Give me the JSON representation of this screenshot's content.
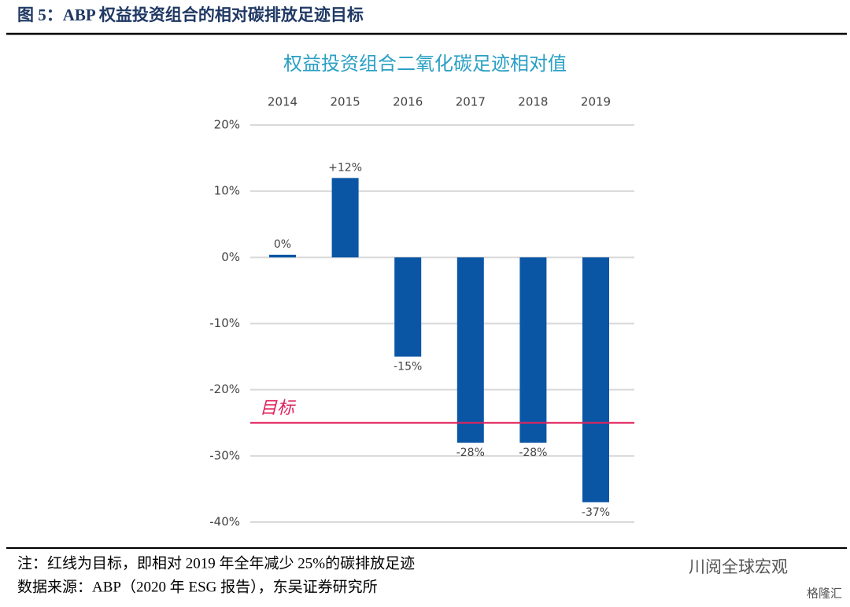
{
  "header": {
    "title": "图 5：ABP 权益投资组合的相对碳排放足迹目标"
  },
  "chart_data": {
    "type": "bar",
    "title": "权益投资组合二氧化碳足迹相对值",
    "categories": [
      "2014",
      "2015",
      "2016",
      "2017",
      "2018",
      "2019"
    ],
    "values": [
      0.4,
      12,
      -15,
      -28,
      -28,
      -37
    ],
    "value_labels": [
      "0%",
      "+12%",
      "-15%",
      "-28%",
      "-28%",
      "-37%"
    ],
    "color": "#0a56a5",
    "ylim": [
      -40,
      20
    ],
    "yticks": [
      {
        "value": 20,
        "label": "20%"
      },
      {
        "value": 10,
        "label": "10%"
      },
      {
        "value": 0,
        "label": "0%"
      },
      {
        "value": -10,
        "label": "-10%"
      },
      {
        "value": -20,
        "label": "-20%"
      },
      {
        "value": -30,
        "label": "-30%"
      },
      {
        "value": -40,
        "label": "-40%"
      }
    ],
    "grid": true,
    "target": {
      "label": "目标",
      "value": -25,
      "color": "#e0245e"
    }
  },
  "footer": {
    "note": "注：红线为目标，即相对 2019 年全年减少 25%的碳排放足迹",
    "source": "数据来源：ABP（2020 年 ESG 报告），东吴证券研究所"
  },
  "watermark": {
    "account": "川阅全球宏观",
    "brand": "格隆汇"
  }
}
